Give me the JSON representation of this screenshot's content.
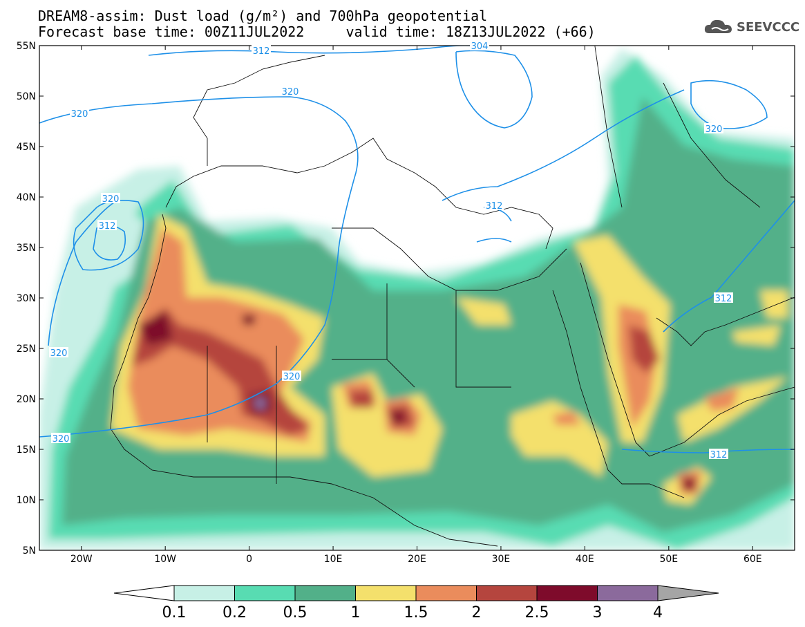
{
  "title": {
    "line1": "DREAM8-assim: Dust load (g/m²) and 700hPa geopotential",
    "line2": "Forecast base time: 00Z11JUL2022     valid time: 18Z13JUL2022 (+66)"
  },
  "logo": {
    "text": "SEEVCCC",
    "icon": "cloud-icon"
  },
  "axes": {
    "lat_labels": [
      "55N",
      "50N",
      "45N",
      "40N",
      "35N",
      "30N",
      "25N",
      "20N",
      "15N",
      "10N",
      "5N"
    ],
    "lon_labels": [
      "20W",
      "10W",
      "0",
      "10E",
      "20E",
      "30E",
      "40E",
      "50E",
      "60E"
    ]
  },
  "colorbar": {
    "ticks": [
      "0.1",
      "0.2",
      "0.5",
      "1",
      "1.5",
      "2",
      "2.5",
      "3",
      "4"
    ],
    "colors": [
      "#c7f0e6",
      "#58dcb2",
      "#52b089",
      "#f4e06c",
      "#ea8c5c",
      "#b5453e",
      "#7e0b2b",
      "#8b6a9c",
      "#a5a5a5"
    ],
    "units": "g/m²"
  },
  "contours": {
    "labels": [
      "312",
      "320",
      "320",
      "320",
      "312",
      "320",
      "320",
      "320",
      "312",
      "320",
      "312",
      "312",
      "304"
    ],
    "line_color": "#1e90e8"
  },
  "map": {
    "lon_range": [
      -25,
      65
    ],
    "lat_range": [
      5,
      55
    ],
    "background": "#ffffff"
  }
}
